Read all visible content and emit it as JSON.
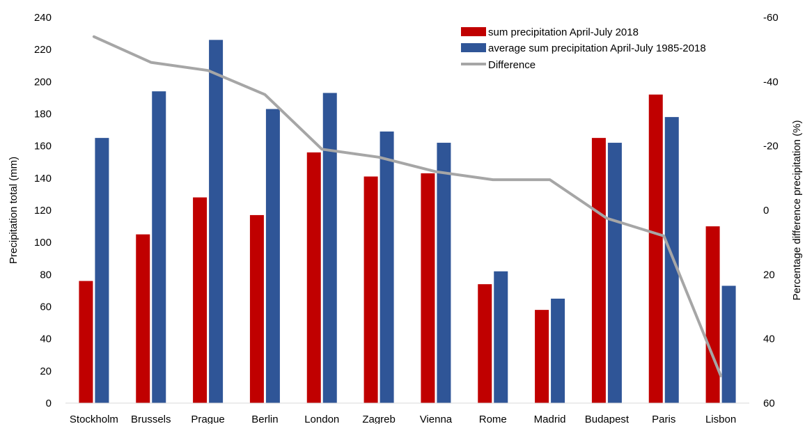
{
  "chart_data": {
    "type": "bar",
    "categories": [
      "Stockholm",
      "Brussels",
      "Prague",
      "Berlin",
      "London",
      "Zagreb",
      "Vienna",
      "Rome",
      "Madrid",
      "Budapest",
      "Paris",
      "Lisbon"
    ],
    "series": [
      {
        "name": "sum precipitation April-July 2018",
        "type": "bar",
        "axis": "left",
        "color": "#c00000",
        "values": [
          76,
          105,
          128,
          117,
          156,
          141,
          143,
          74,
          58,
          165,
          192,
          110
        ]
      },
      {
        "name": "average sum precipitation April-July 1985-2018",
        "type": "bar",
        "axis": "left",
        "color": "#2f5597",
        "values": [
          165,
          194,
          226,
          183,
          193,
          169,
          162,
          82,
          65,
          162,
          178,
          73
        ]
      },
      {
        "name": "Difference",
        "type": "line",
        "axis": "right",
        "color": "#a6a6a6",
        "values": [
          -54,
          -46,
          -43.5,
          -36,
          -19,
          -16.5,
          -12,
          -9.5,
          -9.5,
          2.5,
          8,
          51.5
        ]
      }
    ],
    "ylabel": "Precipitation total (mm)",
    "ylim": [
      0,
      240
    ],
    "yticks": [
      "0",
      "20",
      "40",
      "60",
      "80",
      "100",
      "120",
      "140",
      "160",
      "180",
      "200",
      "220",
      "240"
    ],
    "y2label": "Percentage difference precipitation (%)",
    "y2lim": [
      -60,
      60
    ],
    "y2_inverted": true,
    "y2ticks": [
      "-60",
      "-40",
      "-20",
      "0",
      "20",
      "40",
      "60"
    ],
    "grid": false,
    "legend_position": "top-right"
  }
}
